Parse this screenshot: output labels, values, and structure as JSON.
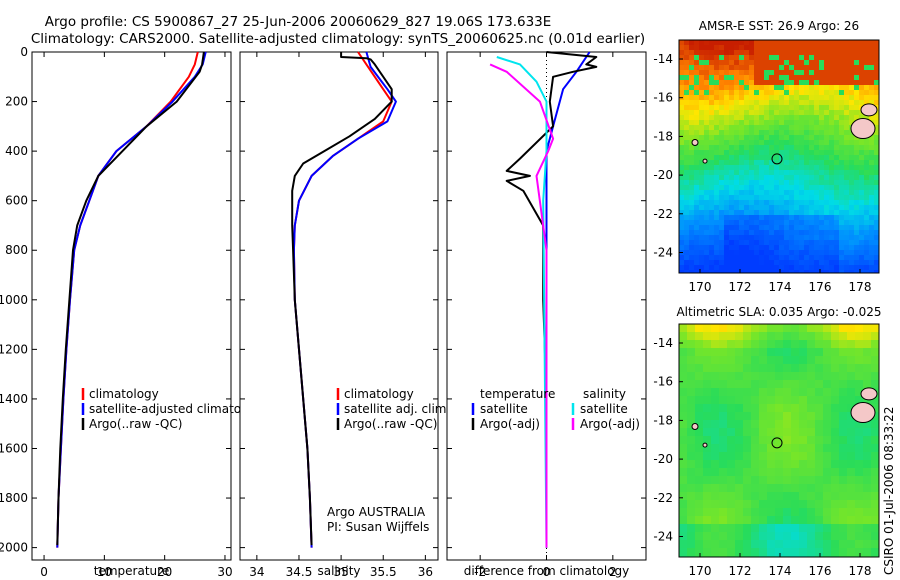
{
  "title_line1": "Argo profile: CS 5900867_27 25-Jun-2006 20060629_827 19.06S 173.633E",
  "title_line2": "Climatology: CARS2000. Satellite-adjusted climatology: synTS_20060625.nc (0.01d earlier)",
  "credit": "CSIRO 01-Jul-2006 08:33:22",
  "colors": {
    "climatology": "#ff0000",
    "satellite": "#0000ff",
    "argo": "#000000",
    "sat_salinity": "#00e5ee",
    "argo_salinity": "#ff00ff"
  },
  "chart_data": [
    {
      "type": "line",
      "title": "",
      "xlabel": "temperature",
      "ylabel": "",
      "xlim": [
        -2,
        31
      ],
      "ylim": [
        2050,
        0
      ],
      "xticks": [
        0,
        10,
        20,
        30
      ],
      "yticks": [
        0,
        200,
        400,
        600,
        800,
        1000,
        1200,
        1400,
        1600,
        1800,
        2000
      ],
      "legend": [
        "climatology",
        "satellite-adjusted climatology",
        "Argo(..raw -QC)"
      ],
      "series": [
        {
          "name": "climatology",
          "color": "climatology",
          "points": [
            [
              25.5,
              0
            ],
            [
              25,
              50
            ],
            [
              24,
              100
            ],
            [
              21,
              200
            ],
            [
              17,
              300
            ],
            [
              12,
              400
            ],
            [
              9,
              500
            ],
            [
              7.5,
              600
            ],
            [
              6,
              700
            ],
            [
              5,
              800
            ],
            [
              4.3,
              1000
            ],
            [
              3.7,
              1200
            ],
            [
              3.2,
              1400
            ],
            [
              2.8,
              1600
            ],
            [
              2.4,
              1800
            ],
            [
              2.2,
              2000
            ]
          ]
        },
        {
          "name": "satellite-adjusted climatology",
          "color": "satellite",
          "points": [
            [
              26.8,
              0
            ],
            [
              26.3,
              50
            ],
            [
              25,
              100
            ],
            [
              21.3,
              200
            ],
            [
              17,
              300
            ],
            [
              12,
              400
            ],
            [
              9,
              500
            ],
            [
              7.5,
              600
            ],
            [
              6,
              700
            ],
            [
              5,
              800
            ],
            [
              4.3,
              1000
            ],
            [
              3.7,
              1200
            ],
            [
              3.2,
              1400
            ],
            [
              2.8,
              1600
            ],
            [
              2.4,
              1800
            ],
            [
              2.2,
              2000
            ]
          ]
        },
        {
          "name": "Argo(..raw -QC)",
          "color": "argo",
          "points": [
            [
              26.5,
              0
            ],
            [
              26.2,
              50
            ],
            [
              25.8,
              80
            ],
            [
              22,
              200
            ],
            [
              17,
              300
            ],
            [
              13,
              400
            ],
            [
              9,
              500
            ],
            [
              7,
              600
            ],
            [
              5.5,
              700
            ],
            [
              4.8,
              800
            ],
            [
              4.2,
              1000
            ],
            [
              3.6,
              1200
            ],
            [
              3.1,
              1400
            ],
            [
              2.7,
              1600
            ],
            [
              2.4,
              1800
            ],
            [
              2.2,
              1990
            ]
          ]
        }
      ]
    },
    {
      "type": "line",
      "title": "",
      "xlabel": "salinity",
      "ylabel": "",
      "xlim": [
        33.8,
        36.15
      ],
      "ylim": [
        2050,
        0
      ],
      "xticks": [
        34,
        34.5,
        35,
        35.5,
        36
      ],
      "yticks": [
        0,
        200,
        400,
        600,
        800,
        1000,
        1200,
        1400,
        1600,
        1800,
        2000
      ],
      "legend": [
        "climatology",
        "satellite adj. clim.",
        "Argo(..raw -QC)"
      ],
      "annotation": [
        "Argo AUSTRALIA",
        "PI: Susan Wijffels"
      ],
      "series": [
        {
          "name": "climatology",
          "color": "climatology",
          "points": [
            [
              35.2,
              0
            ],
            [
              35.3,
              50
            ],
            [
              35.5,
              150
            ],
            [
              35.6,
              200
            ],
            [
              35.5,
              280
            ],
            [
              35.2,
              350
            ],
            [
              34.9,
              420
            ],
            [
              34.65,
              500
            ],
            [
              34.5,
              600
            ],
            [
              34.45,
              700
            ],
            [
              34.44,
              800
            ],
            [
              34.45,
              1000
            ],
            [
              34.5,
              1200
            ],
            [
              34.55,
              1400
            ],
            [
              34.6,
              1600
            ],
            [
              34.63,
              1800
            ],
            [
              34.65,
              2000
            ]
          ]
        },
        {
          "name": "satellite adj. clim.",
          "color": "satellite",
          "points": [
            [
              35.3,
              0
            ],
            [
              35.35,
              60
            ],
            [
              35.55,
              150
            ],
            [
              35.65,
              200
            ],
            [
              35.55,
              280
            ],
            [
              35.2,
              350
            ],
            [
              34.9,
              420
            ],
            [
              34.65,
              500
            ],
            [
              34.5,
              600
            ],
            [
              34.45,
              700
            ],
            [
              34.44,
              800
            ],
            [
              34.45,
              1000
            ],
            [
              34.5,
              1200
            ],
            [
              34.55,
              1400
            ],
            [
              34.6,
              1600
            ],
            [
              34.63,
              1800
            ],
            [
              34.65,
              2000
            ]
          ]
        },
        {
          "name": "Argo(..raw -QC)",
          "color": "argo",
          "points": [
            [
              35,
              0
            ],
            [
              35.0,
              20
            ],
            [
              35.3,
              25
            ],
            [
              35.35,
              30
            ],
            [
              35.4,
              50
            ],
            [
              35.6,
              150
            ],
            [
              35.6,
              200
            ],
            [
              35.4,
              270
            ],
            [
              35.1,
              340
            ],
            [
              34.8,
              400
            ],
            [
              34.55,
              450
            ],
            [
              34.45,
              500
            ],
            [
              34.42,
              560
            ],
            [
              34.42,
              700
            ],
            [
              34.43,
              800
            ],
            [
              34.45,
              1000
            ],
            [
              34.5,
              1200
            ],
            [
              34.55,
              1400
            ],
            [
              34.6,
              1600
            ],
            [
              34.63,
              1800
            ],
            [
              34.65,
              1990
            ]
          ]
        }
      ]
    },
    {
      "type": "line",
      "title": "",
      "xlabel": "difference from climatology",
      "ylabel": "",
      "xlim": [
        -3,
        3
      ],
      "ylim": [
        2050,
        0
      ],
      "xticks": [
        -2,
        0,
        2
      ],
      "yticks": [
        0,
        200,
        400,
        600,
        800,
        1000,
        1200,
        1400,
        1600,
        1800,
        2000
      ],
      "legend_left": [
        "temperature",
        "satellite",
        "Argo(-adj)"
      ],
      "legend_right": [
        "salinity",
        "satellite",
        "Argo(-adj)"
      ],
      "series": [
        {
          "name": "temperature satellite",
          "color": "satellite",
          "points": [
            [
              1.3,
              0
            ],
            [
              0.9,
              80
            ],
            [
              0.5,
              150
            ],
            [
              0.2,
              300
            ],
            [
              0,
              400
            ],
            [
              0,
              2000
            ]
          ]
        },
        {
          "name": "temperature Argo(-adj)",
          "color": "argo",
          "points": [
            [
              0,
              0
            ],
            [
              1.5,
              20
            ],
            [
              1.2,
              50
            ],
            [
              1.5,
              60
            ],
            [
              0.8,
              80
            ],
            [
              0.2,
              100
            ],
            [
              0.1,
              200
            ],
            [
              0.2,
              300
            ],
            [
              -0.8,
              430
            ],
            [
              -1.2,
              480
            ],
            [
              -0.5,
              500
            ],
            [
              -1.2,
              520
            ],
            [
              -0.7,
              560
            ],
            [
              -0.1,
              700
            ],
            [
              -0.1,
              1000
            ],
            [
              0,
              1400
            ],
            [
              0,
              2000
            ]
          ]
        },
        {
          "name": "salinity satellite",
          "color": "sat_salinity",
          "points": [
            [
              -1.5,
              20
            ],
            [
              -0.8,
              50
            ],
            [
              -0.3,
              120
            ],
            [
              0,
              200
            ],
            [
              0,
              400
            ],
            [
              -0.1,
              600
            ],
            [
              0,
              2000
            ]
          ]
        },
        {
          "name": "salinity Argo(-adj)",
          "color": "argo_salinity",
          "points": [
            [
              -1.7,
              50
            ],
            [
              -1.2,
              80
            ],
            [
              -0.2,
              200
            ],
            [
              0.2,
              350
            ],
            [
              0.05,
              400
            ],
            [
              -0.3,
              500
            ],
            [
              -0.15,
              650
            ],
            [
              0,
              800
            ],
            [
              0,
              2000
            ]
          ]
        }
      ]
    }
  ],
  "maps": [
    {
      "title": "AMSR-E SST: 26.9 Argo: 26",
      "xticks": [
        "170",
        "172",
        "174",
        "176",
        "178"
      ],
      "yticks": [
        "-14",
        "-16",
        "-18",
        "-20",
        "-22",
        "-24"
      ],
      "kind": "sst"
    },
    {
      "title": "Altimetric SLA: 0.035 Argo: -0.025",
      "xticks": [
        "170",
        "172",
        "174",
        "176",
        "178"
      ],
      "yticks": [
        "-14",
        "-16",
        "-18",
        "-20",
        "-22",
        "-24"
      ],
      "kind": "sla"
    }
  ]
}
